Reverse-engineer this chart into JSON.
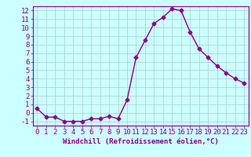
{
  "x": [
    0,
    1,
    2,
    3,
    4,
    5,
    6,
    7,
    8,
    9,
    10,
    11,
    12,
    13,
    14,
    15,
    16,
    17,
    18,
    19,
    20,
    21,
    22,
    23
  ],
  "y": [
    0.5,
    -0.5,
    -0.5,
    -1.0,
    -1.0,
    -1.0,
    -0.7,
    -0.7,
    -0.4,
    -0.7,
    1.5,
    6.5,
    8.5,
    10.5,
    11.2,
    12.2,
    12.0,
    9.5,
    7.5,
    6.5,
    5.5,
    4.7,
    4.0,
    3.5
  ],
  "color": "#880088",
  "bg_color": "#ccffff",
  "grid_color": "#aacccc",
  "xlabel": "Windchill (Refroidissement éolien,°C)",
  "xlim": [
    -0.5,
    23.5
  ],
  "ylim": [
    -1.5,
    12.5
  ],
  "yticks": [
    -1,
    0,
    1,
    2,
    3,
    4,
    5,
    6,
    7,
    8,
    9,
    10,
    11,
    12
  ],
  "xticks": [
    0,
    1,
    2,
    3,
    4,
    5,
    6,
    7,
    8,
    9,
    10,
    11,
    12,
    13,
    14,
    15,
    16,
    17,
    18,
    19,
    20,
    21,
    22,
    23
  ],
  "marker": "D",
  "markersize": 2.5,
  "linewidth": 1.0,
  "tick_fontsize": 6.5,
  "xlabel_fontsize": 6.5
}
